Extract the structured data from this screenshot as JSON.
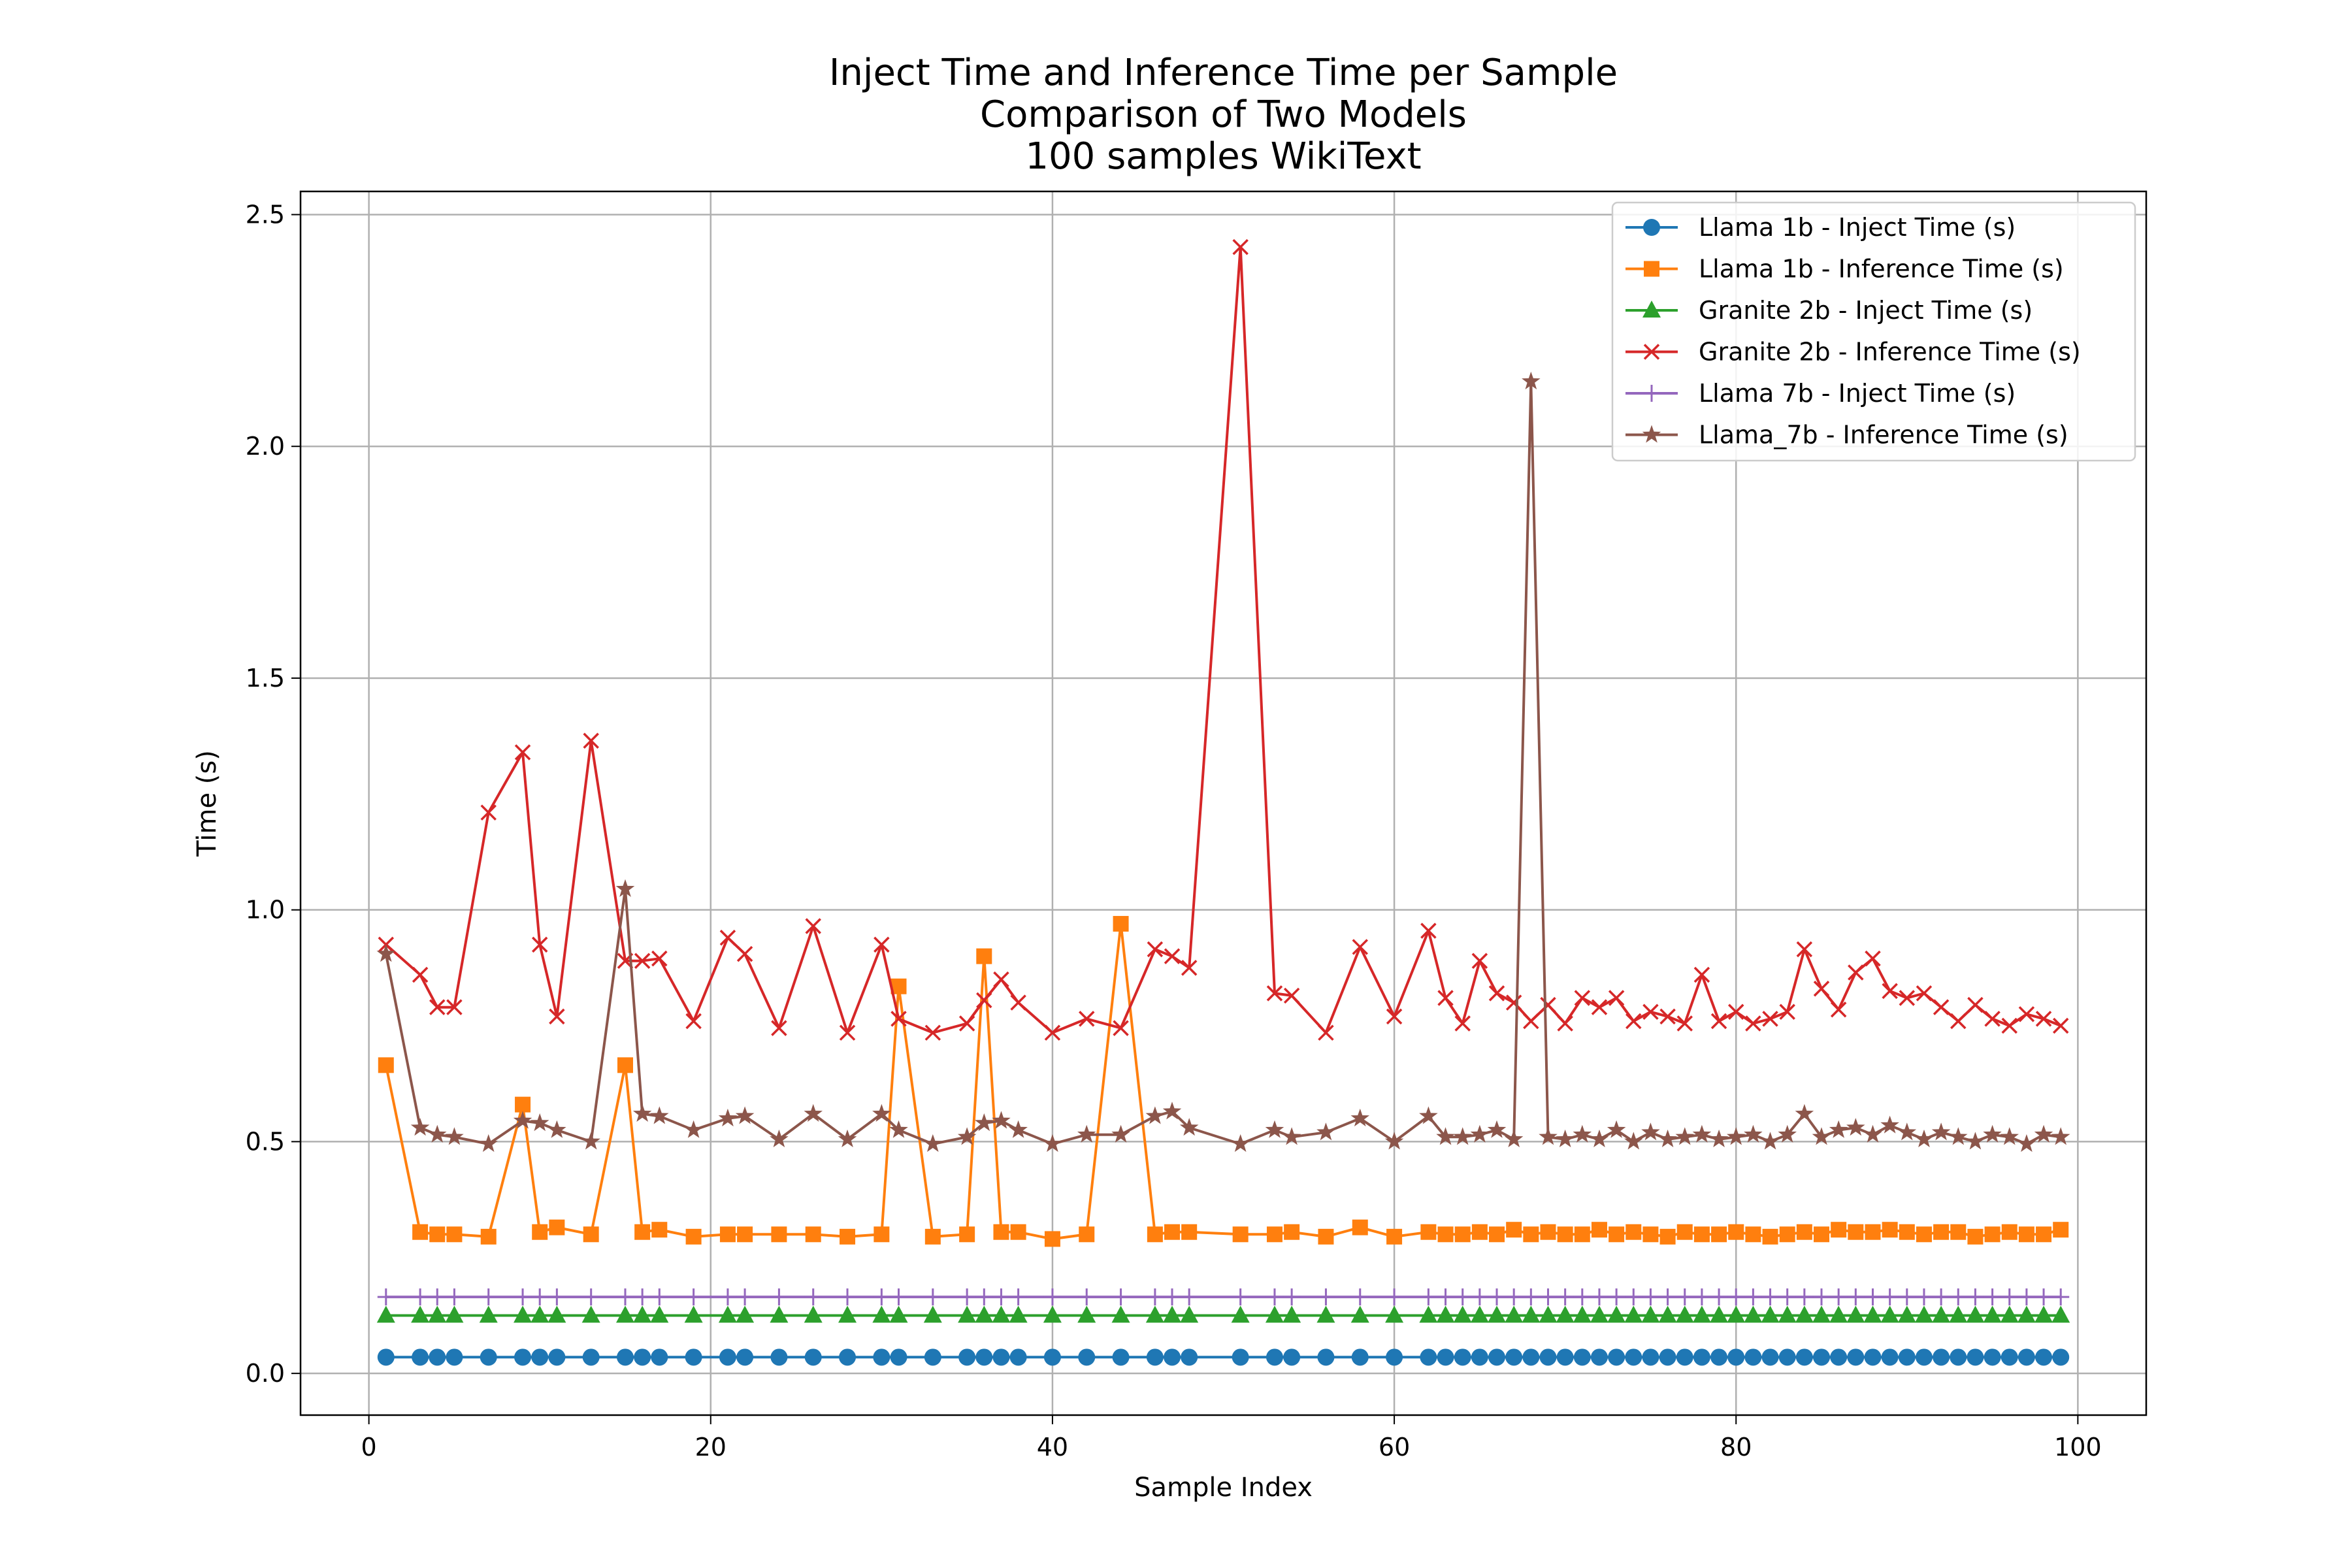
{
  "chart_data": {
    "type": "line",
    "title": [
      "Inject Time and Inference Time per Sample",
      "Comparison of Two Models",
      "100 samples WikiText"
    ],
    "xlabel": "Sample Index",
    "ylabel": "Time (s)",
    "xlim": [
      -4,
      104
    ],
    "ylim": [
      -0.09,
      2.55
    ],
    "xticks": [
      0,
      20,
      40,
      60,
      80,
      100
    ],
    "xtick_labels": [
      "0",
      "20",
      "40",
      "60",
      "80",
      "100"
    ],
    "yticks": [
      0.0,
      0.5,
      1.0,
      1.5,
      2.0,
      2.5
    ],
    "ytick_labels": [
      "0.0",
      "0.5",
      "1.0",
      "1.5",
      "2.0",
      "2.5"
    ],
    "grid": true,
    "legend_position": "top-right",
    "x": [
      1,
      3,
      4,
      5,
      7,
      9,
      10,
      11,
      13,
      15,
      16,
      17,
      19,
      21,
      22,
      24,
      26,
      28,
      30,
      31,
      33,
      35,
      36,
      37,
      38,
      40,
      42,
      44,
      46,
      47,
      48,
      51,
      53,
      54,
      56,
      58,
      60,
      62,
      63,
      64,
      65,
      66,
      67,
      68,
      69,
      70,
      71,
      72,
      73,
      74,
      75,
      76,
      77,
      78,
      79,
      80,
      81,
      82,
      83,
      84,
      85,
      86,
      87,
      88,
      89,
      90,
      91,
      92,
      93,
      94,
      95,
      96,
      97,
      98,
      99
    ],
    "series": [
      {
        "name": "Llama 1b - Inject Time (s)",
        "color": "#1f77b4",
        "marker": "circle",
        "values": [
          0.035,
          0.035,
          0.035,
          0.035,
          0.035,
          0.035,
          0.035,
          0.035,
          0.035,
          0.035,
          0.035,
          0.035,
          0.035,
          0.035,
          0.035,
          0.035,
          0.035,
          0.035,
          0.035,
          0.035,
          0.035,
          0.035,
          0.035,
          0.035,
          0.035,
          0.035,
          0.035,
          0.035,
          0.035,
          0.035,
          0.035,
          0.035,
          0.035,
          0.035,
          0.035,
          0.035,
          0.035,
          0.035,
          0.035,
          0.035,
          0.035,
          0.035,
          0.035,
          0.035,
          0.035,
          0.035,
          0.035,
          0.035,
          0.035,
          0.035,
          0.035,
          0.035,
          0.035,
          0.035,
          0.035,
          0.035,
          0.035,
          0.035,
          0.035,
          0.035,
          0.035,
          0.035,
          0.035,
          0.035,
          0.035,
          0.035,
          0.035,
          0.035,
          0.035,
          0.035,
          0.035,
          0.035,
          0.035,
          0.035,
          0.035
        ]
      },
      {
        "name": "Llama 1b - Inference Time (s)",
        "color": "#ff7f0e",
        "marker": "square",
        "values": [
          0.665,
          0.305,
          0.3,
          0.3,
          0.295,
          0.58,
          0.305,
          0.315,
          0.3,
          0.665,
          0.305,
          0.31,
          0.295,
          0.3,
          0.3,
          0.3,
          0.3,
          0.295,
          0.3,
          0.835,
          0.295,
          0.3,
          0.9,
          0.305,
          0.305,
          0.29,
          0.3,
          0.97,
          0.3,
          0.305,
          0.305,
          0.3,
          0.3,
          0.305,
          0.295,
          0.315,
          0.295,
          0.305,
          0.3,
          0.3,
          0.305,
          0.3,
          0.31,
          0.3,
          0.305,
          0.3,
          0.3,
          0.31,
          0.3,
          0.305,
          0.3,
          0.295,
          0.305,
          0.3,
          0.3,
          0.305,
          0.3,
          0.295,
          0.3,
          0.305,
          0.3,
          0.31,
          0.305,
          0.305,
          0.31,
          0.305,
          0.3,
          0.305,
          0.305,
          0.295,
          0.3,
          0.305,
          0.3,
          0.3,
          0.31
        ]
      },
      {
        "name": "Granite 2b - Inject Time (s)",
        "color": "#2ca02c",
        "marker": "triangle",
        "values": [
          0.125,
          0.125,
          0.125,
          0.125,
          0.125,
          0.125,
          0.125,
          0.125,
          0.125,
          0.125,
          0.125,
          0.125,
          0.125,
          0.125,
          0.125,
          0.125,
          0.125,
          0.125,
          0.125,
          0.125,
          0.125,
          0.125,
          0.125,
          0.125,
          0.125,
          0.125,
          0.125,
          0.125,
          0.125,
          0.125,
          0.125,
          0.125,
          0.125,
          0.125,
          0.125,
          0.125,
          0.125,
          0.125,
          0.125,
          0.125,
          0.125,
          0.125,
          0.125,
          0.125,
          0.125,
          0.125,
          0.125,
          0.125,
          0.125,
          0.125,
          0.125,
          0.125,
          0.125,
          0.125,
          0.125,
          0.125,
          0.125,
          0.125,
          0.125,
          0.125,
          0.125,
          0.125,
          0.125,
          0.125,
          0.125,
          0.125,
          0.125,
          0.125,
          0.125,
          0.125,
          0.125,
          0.125,
          0.125,
          0.125,
          0.125
        ]
      },
      {
        "name": "Granite 2b - Inference Time (s)",
        "color": "#d62728",
        "marker": "x",
        "values": [
          0.925,
          0.86,
          0.79,
          0.79,
          1.21,
          1.34,
          0.925,
          0.77,
          1.365,
          0.89,
          0.89,
          0.895,
          0.76,
          0.94,
          0.905,
          0.745,
          0.965,
          0.735,
          0.925,
          0.765,
          0.735,
          0.755,
          0.805,
          0.85,
          0.8,
          0.735,
          0.765,
          0.745,
          0.915,
          0.9,
          0.875,
          2.43,
          0.82,
          0.815,
          0.735,
          0.92,
          0.77,
          0.955,
          0.81,
          0.755,
          0.89,
          0.82,
          0.8,
          0.76,
          0.795,
          0.755,
          0.81,
          0.79,
          0.81,
          0.76,
          0.78,
          0.77,
          0.755,
          0.86,
          0.76,
          0.78,
          0.755,
          0.765,
          0.78,
          0.915,
          0.83,
          0.785,
          0.865,
          0.895,
          0.825,
          0.81,
          0.82,
          0.79,
          0.76,
          0.795,
          0.765,
          0.75,
          0.775,
          0.765,
          0.75
        ]
      },
      {
        "name": "Llama 7b - Inject Time (s)",
        "color": "#9467bd",
        "marker": "plus",
        "values": [
          0.165,
          0.165,
          0.165,
          0.165,
          0.165,
          0.165,
          0.165,
          0.165,
          0.165,
          0.165,
          0.165,
          0.165,
          0.165,
          0.165,
          0.165,
          0.165,
          0.165,
          0.165,
          0.165,
          0.165,
          0.165,
          0.165,
          0.165,
          0.165,
          0.165,
          0.165,
          0.165,
          0.165,
          0.165,
          0.165,
          0.165,
          0.165,
          0.165,
          0.165,
          0.165,
          0.165,
          0.165,
          0.165,
          0.165,
          0.165,
          0.165,
          0.165,
          0.165,
          0.165,
          0.165,
          0.165,
          0.165,
          0.165,
          0.165,
          0.165,
          0.165,
          0.165,
          0.165,
          0.165,
          0.165,
          0.165,
          0.165,
          0.165,
          0.165,
          0.165,
          0.165,
          0.165,
          0.165,
          0.165,
          0.165,
          0.165,
          0.165,
          0.165,
          0.165,
          0.165,
          0.165,
          0.165,
          0.165,
          0.165,
          0.165
        ]
      },
      {
        "name": "Llama_7b - Inference Time (s)",
        "color": "#8c564b",
        "marker": "star",
        "values": [
          0.905,
          0.53,
          0.515,
          0.51,
          0.495,
          0.545,
          0.54,
          0.525,
          0.5,
          1.045,
          0.56,
          0.555,
          0.525,
          0.55,
          0.555,
          0.505,
          0.56,
          0.505,
          0.56,
          0.525,
          0.495,
          0.51,
          0.54,
          0.545,
          0.525,
          0.495,
          0.515,
          0.515,
          0.555,
          0.565,
          0.53,
          0.495,
          0.525,
          0.51,
          0.52,
          0.55,
          0.5,
          0.555,
          0.51,
          0.51,
          0.515,
          0.525,
          0.505,
          2.14,
          0.51,
          0.505,
          0.515,
          0.505,
          0.525,
          0.5,
          0.52,
          0.505,
          0.51,
          0.515,
          0.505,
          0.51,
          0.515,
          0.5,
          0.515,
          0.56,
          0.51,
          0.525,
          0.53,
          0.515,
          0.535,
          0.52,
          0.505,
          0.52,
          0.51,
          0.5,
          0.515,
          0.51,
          0.495,
          0.515,
          0.51
        ]
      }
    ]
  }
}
